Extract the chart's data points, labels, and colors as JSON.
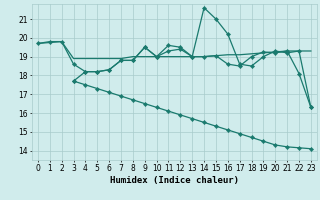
{
  "xlabel": "Humidex (Indice chaleur)",
  "bg_color": "#d0ecec",
  "grid_color": "#a8cccc",
  "line_color": "#1a7a6e",
  "xlim": [
    -0.5,
    23.5
  ],
  "ylim": [
    13.5,
    21.8
  ],
  "xtick_vals": [
    0,
    1,
    2,
    3,
    4,
    5,
    6,
    7,
    8,
    9,
    10,
    11,
    12,
    13,
    14,
    15,
    16,
    17,
    18,
    19,
    20,
    21,
    22,
    23
  ],
  "ytick_vals": [
    14,
    15,
    16,
    17,
    18,
    19,
    20,
    21
  ],
  "line1_x": [
    0,
    1,
    2,
    3,
    4,
    5,
    6,
    7,
    8,
    9,
    10,
    11,
    12,
    13,
    14,
    15,
    16,
    17,
    18,
    19,
    20,
    21,
    22,
    23
  ],
  "line1_y": [
    19.7,
    19.8,
    19.8,
    18.6,
    18.2,
    18.2,
    18.3,
    18.8,
    18.8,
    19.5,
    19.0,
    19.6,
    19.5,
    19.0,
    19.0,
    19.05,
    18.6,
    18.5,
    19.0,
    19.25,
    19.2,
    19.3,
    18.1,
    16.3
  ],
  "line2_x": [
    0,
    1,
    2,
    3,
    4,
    5,
    6,
    7,
    8,
    9,
    10,
    11,
    12,
    13,
    14,
    15,
    16,
    17,
    18,
    19,
    20,
    21,
    22,
    23
  ],
  "line2_y": [
    19.7,
    19.75,
    19.8,
    18.9,
    18.9,
    18.9,
    18.9,
    18.9,
    19.0,
    19.0,
    19.0,
    19.0,
    19.0,
    19.0,
    19.0,
    19.05,
    19.1,
    19.1,
    19.15,
    19.2,
    19.25,
    19.3,
    19.3,
    19.3
  ],
  "line3_x": [
    3,
    4,
    5,
    6,
    7,
    8,
    9,
    10,
    11,
    12,
    13,
    14,
    15,
    16,
    17,
    18,
    19,
    20,
    21,
    22,
    23
  ],
  "line3_y": [
    17.7,
    18.2,
    18.2,
    18.3,
    18.8,
    18.8,
    19.5,
    19.0,
    19.3,
    19.4,
    19.0,
    21.6,
    21.0,
    20.2,
    18.6,
    18.5,
    19.0,
    19.3,
    19.2,
    19.3,
    16.3
  ],
  "line4_x": [
    3,
    4,
    5,
    6,
    7,
    8,
    9,
    10,
    11,
    12,
    13,
    14,
    15,
    16,
    17,
    18,
    19,
    20,
    21,
    22,
    23
  ],
  "line4_y": [
    17.7,
    17.5,
    17.3,
    17.1,
    16.9,
    16.7,
    16.5,
    16.3,
    16.1,
    15.9,
    15.7,
    15.5,
    15.3,
    15.1,
    14.9,
    14.7,
    14.5,
    14.3,
    14.2,
    14.15,
    14.1
  ],
  "marker_size": 2.2,
  "linewidth": 0.9,
  "tick_fontsize": 5.5,
  "label_fontsize": 6.5
}
